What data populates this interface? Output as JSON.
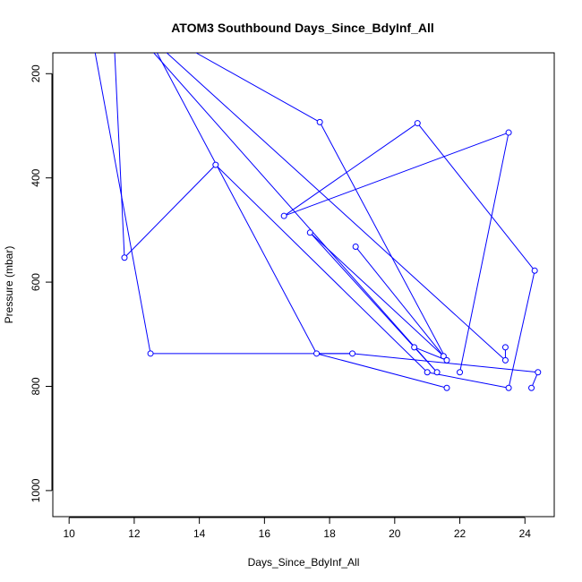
{
  "chart_data": {
    "type": "scatter",
    "title": "ATOM3 Southbound Days_Since_BdyInf_All",
    "xlabel": "Days_Since_BdyInf_All",
    "ylabel": "Pressure (mbar)",
    "xlim": [
      9.5,
      24.9
    ],
    "ylim": [
      1050,
      160
    ],
    "y_reversed": true,
    "grid": false,
    "x_ticks": [
      "10",
      "12",
      "14",
      "16",
      "18",
      "20",
      "22",
      "24"
    ],
    "y_ticks": [
      "200",
      "400",
      "600",
      "800",
      "1000"
    ],
    "series_color": "#0000ff",
    "point_style": "line-and-point",
    "points": [
      {
        "x": 11.7,
        "y": 553
      },
      {
        "x": 14.5,
        "y": 375
      },
      {
        "x": 17.4,
        "y": 505
      },
      {
        "x": 18.8,
        "y": 532
      },
      {
        "x": 16.6,
        "y": 473
      },
      {
        "x": 20.7,
        "y": 295
      },
      {
        "x": 17.7,
        "y": 293
      },
      {
        "x": 23.5,
        "y": 313
      },
      {
        "x": 24.3,
        "y": 578
      },
      {
        "x": 21.6,
        "y": 803
      },
      {
        "x": 18.7,
        "y": 737
      },
      {
        "x": 17.6,
        "y": 737
      },
      {
        "x": 12.5,
        "y": 737
      },
      {
        "x": 23.5,
        "y": 803
      },
      {
        "x": 24.2,
        "y": 803
      },
      {
        "x": 24.4,
        "y": 773
      },
      {
        "x": 23.4,
        "y": 725
      },
      {
        "x": 23.4,
        "y": 750
      },
      {
        "x": 20.6,
        "y": 725
      },
      {
        "x": 21.0,
        "y": 773
      },
      {
        "x": 21.3,
        "y": 773
      },
      {
        "x": 21.5,
        "y": 742
      },
      {
        "x": 21.6,
        "y": 750
      },
      {
        "x": 22.0,
        "y": 773
      }
    ],
    "segments": [
      [
        [
          10.8,
          160
        ],
        [
          12.5,
          737
        ]
      ],
      [
        [
          12.5,
          737
        ],
        [
          18.7,
          737
        ]
      ],
      [
        [
          18.7,
          737
        ],
        [
          24.4,
          773
        ]
      ],
      [
        [
          24.4,
          773
        ],
        [
          24.2,
          803
        ]
      ],
      [
        [
          11.7,
          553
        ],
        [
          14.5,
          375
        ]
      ],
      [
        [
          14.5,
          375
        ],
        [
          21.0,
          773
        ]
      ],
      [
        [
          11.4,
          160
        ],
        [
          11.7,
          553
        ]
      ],
      [
        [
          12.7,
          160
        ],
        [
          17.6,
          737
        ]
      ],
      [
        [
          17.6,
          737
        ],
        [
          21.6,
          803
        ]
      ],
      [
        [
          12.6,
          160
        ],
        [
          21.3,
          773
        ]
      ],
      [
        [
          16.6,
          473
        ],
        [
          20.7,
          295
        ]
      ],
      [
        [
          20.7,
          295
        ],
        [
          24.3,
          578
        ]
      ],
      [
        [
          24.3,
          578
        ],
        [
          23.5,
          803
        ]
      ],
      [
        [
          16.6,
          473
        ],
        [
          23.5,
          313
        ]
      ],
      [
        [
          23.5,
          313
        ],
        [
          22.0,
          773
        ]
      ],
      [
        [
          13.9,
          160
        ],
        [
          17.7,
          293
        ]
      ],
      [
        [
          17.7,
          293
        ],
        [
          21.6,
          750
        ]
      ],
      [
        [
          13.0,
          160
        ],
        [
          23.4,
          750
        ]
      ],
      [
        [
          17.4,
          505
        ],
        [
          21.5,
          742
        ]
      ],
      [
        [
          17.4,
          505
        ],
        [
          21.3,
          773
        ]
      ],
      [
        [
          18.8,
          532
        ],
        [
          21.5,
          742
        ]
      ],
      [
        [
          21.5,
          742
        ],
        [
          21.6,
          750
        ]
      ],
      [
        [
          20.6,
          725
        ],
        [
          21.6,
          750
        ]
      ],
      [
        [
          23.4,
          725
        ],
        [
          23.4,
          750
        ]
      ],
      [
        [
          17.6,
          737
        ],
        [
          18.7,
          737
        ]
      ],
      [
        [
          23.5,
          803
        ],
        [
          21.0,
          773
        ]
      ]
    ]
  }
}
